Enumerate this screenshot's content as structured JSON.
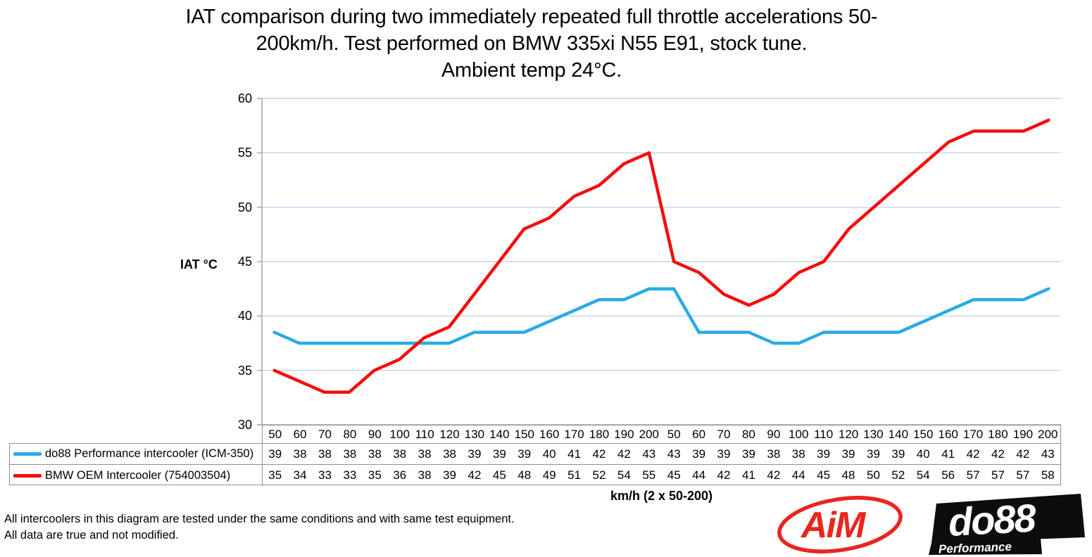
{
  "title_lines": [
    "IAT comparison during two immediately repeated full throttle accelerations 50-",
    "200km/h. Test performed on BMW 335xi N55 E91, stock tune.",
    "Ambient temp 24°C."
  ],
  "y_axis_label": "IAT °C",
  "x_axis_label": "km/h (2 x 50-200)",
  "footer_notes": [
    "All intercoolers in this diagram are tested under the same conditions and with same test equipment.",
    "All data are true and not modified."
  ],
  "logos": {
    "aim": "AiM",
    "do88": "do88",
    "do88_tagline": "Performance"
  },
  "colors": {
    "gridline": "#b8c9e8",
    "axis": "#a6a6a6",
    "table_border": "#8f8f8f",
    "aim_red": "#e8261f",
    "logo_black": "#0d0d0d",
    "text": "#000000"
  },
  "chart_data": {
    "type": "line",
    "title": "IAT comparison during two immediately repeated full throttle accelerations 50-200km/h. Test performed on BMW 335xi N55 E91, stock tune. Ambient temp 24°C.",
    "xlabel": "km/h (2 x 50-200)",
    "ylabel": "IAT °C",
    "ylim": [
      30,
      60
    ],
    "yticks": [
      30,
      35,
      40,
      45,
      50,
      55,
      60
    ],
    "grid": "horizontal",
    "legend_position": "table-left",
    "categories": [
      "50",
      "60",
      "70",
      "80",
      "90",
      "100",
      "110",
      "120",
      "130",
      "140",
      "150",
      "160",
      "170",
      "180",
      "190",
      "200",
      "50",
      "60",
      "70",
      "80",
      "90",
      "100",
      "110",
      "120",
      "130",
      "140",
      "150",
      "160",
      "170",
      "180",
      "190",
      "200"
    ],
    "series": [
      {
        "name": "do88 Performance intercooler (ICM-350)",
        "color": "#29abe2",
        "values": [
          39,
          38,
          38,
          38,
          38,
          38,
          38,
          38,
          39,
          39,
          39,
          40,
          41,
          42,
          42,
          43,
          43,
          39,
          39,
          39,
          38,
          38,
          39,
          39,
          39,
          39,
          40,
          41,
          42,
          42,
          42,
          43
        ],
        "plot_offset": -0.5
      },
      {
        "name": "BMW OEM Intercooler (754003504)",
        "color": "#f40d0d",
        "values": [
          35,
          34,
          33,
          33,
          35,
          36,
          38,
          39,
          42,
          45,
          48,
          49,
          51,
          52,
          54,
          55,
          45,
          44,
          42,
          41,
          42,
          44,
          45,
          48,
          50,
          52,
          54,
          56,
          57,
          57,
          57,
          58
        ],
        "plot_offset": 0
      }
    ]
  }
}
